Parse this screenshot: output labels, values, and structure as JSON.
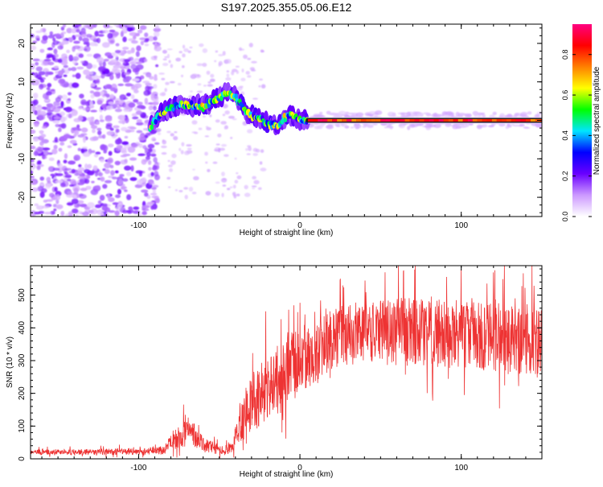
{
  "figure": {
    "title": "S197.2025.355.05.06.E12"
  },
  "chart_data": [
    {
      "type": "heatmap",
      "title": "",
      "xlabel": "Height of straight line (km)",
      "ylabel": "Frequency (Hz)",
      "xlim": [
        -167,
        150
      ],
      "ylim": [
        -25,
        25
      ],
      "xticks": [
        -100,
        0,
        100
      ],
      "yticks": [
        -20,
        -10,
        0,
        10,
        20
      ],
      "grid": false,
      "colorbar": {
        "label": "Normalized spectral amplitude",
        "range": [
          0.0,
          0.95
        ],
        "ticks": [
          "0.0",
          "0.2",
          "0.4",
          "0.6",
          "0.8"
        ],
        "tick_values": [
          0.0,
          0.2,
          0.4,
          0.6,
          0.8
        ],
        "colormap": [
          "#ffffff",
          "#cc99ff",
          "#6a00ff",
          "#0000ff",
          "#00e5ff",
          "#00ff00",
          "#ffff00",
          "#ff8000",
          "#ff0000",
          "#ff0080"
        ]
      },
      "ridge": [
        {
          "x": -93,
          "y": -2
        },
        {
          "x": -88,
          "y": 1
        },
        {
          "x": -82,
          "y": 3
        },
        {
          "x": -75,
          "y": 4
        },
        {
          "x": -68,
          "y": 4
        },
        {
          "x": -60,
          "y": 3.5
        },
        {
          "x": -52,
          "y": 5.5
        },
        {
          "x": -45,
          "y": 7
        },
        {
          "x": -40,
          "y": 6
        },
        {
          "x": -35,
          "y": 3
        },
        {
          "x": -30,
          "y": 1
        },
        {
          "x": -25,
          "y": 0.5
        },
        {
          "x": -20,
          "y": -1
        },
        {
          "x": -15,
          "y": -1.5
        },
        {
          "x": -10,
          "y": 0.5
        },
        {
          "x": -5,
          "y": 1.5
        },
        {
          "x": 0,
          "y": 0
        },
        {
          "x": 5,
          "y": 0
        },
        {
          "x": 150,
          "y": 0
        }
      ],
      "noise_region": {
        "x_from": -167,
        "x_to": -92,
        "mean_amplitude": 0.15
      }
    },
    {
      "type": "line",
      "title": "",
      "xlabel": "Height of straight line (km)",
      "ylabel": "SNR (10 * v/v)",
      "xlim": [
        -167,
        150
      ],
      "ylim": [
        0,
        590
      ],
      "xticks": [
        -100,
        0,
        100
      ],
      "yticks": [
        0,
        100,
        200,
        300,
        400,
        500
      ],
      "grid": false,
      "series": [
        {
          "name": "SNR",
          "color": "#ee3333",
          "trend": [
            {
              "x": -167,
              "y": 20
            },
            {
              "x": -100,
              "y": 22
            },
            {
              "x": -85,
              "y": 25
            },
            {
              "x": -75,
              "y": 70
            },
            {
              "x": -68,
              "y": 85
            },
            {
              "x": -62,
              "y": 50
            },
            {
              "x": -50,
              "y": 25
            },
            {
              "x": -42,
              "y": 30
            },
            {
              "x": -38,
              "y": 110
            },
            {
              "x": -30,
              "y": 170
            },
            {
              "x": -15,
              "y": 235
            },
            {
              "x": -5,
              "y": 280
            },
            {
              "x": 5,
              "y": 310
            },
            {
              "x": 15,
              "y": 345
            },
            {
              "x": 20,
              "y": 365
            },
            {
              "x": 30,
              "y": 380
            },
            {
              "x": 60,
              "y": 390
            },
            {
              "x": 100,
              "y": 380
            },
            {
              "x": 130,
              "y": 370
            },
            {
              "x": 150,
              "y": 360
            }
          ],
          "noise_fraction": [
            {
              "x": -167,
              "v": 0.4
            },
            {
              "x": -85,
              "v": 0.5
            },
            {
              "x": -40,
              "v": 0.6
            },
            {
              "x": 20,
              "v": 0.25
            },
            {
              "x": 150,
              "v": 0.3
            }
          ]
        }
      ]
    }
  ]
}
